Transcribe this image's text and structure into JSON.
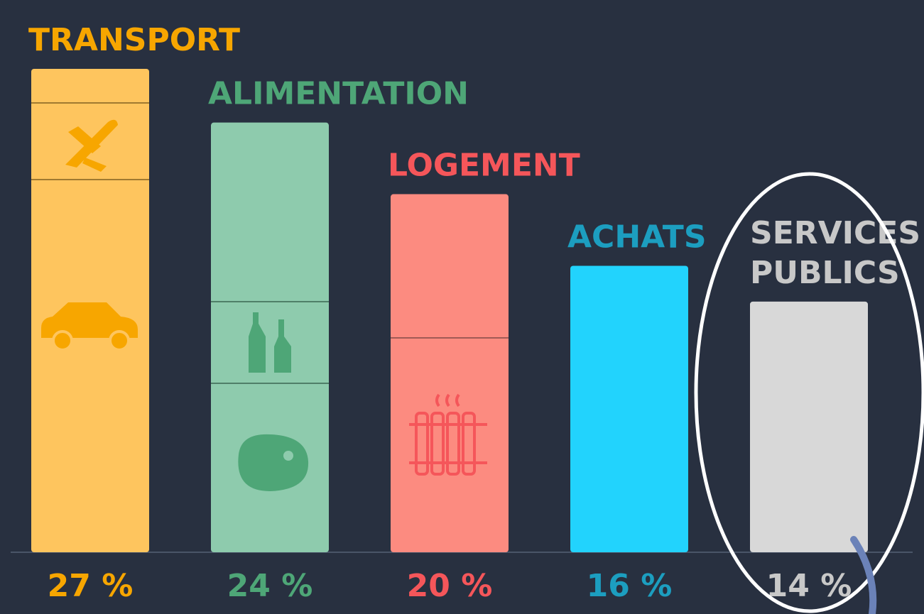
{
  "chart_data": {
    "type": "bar",
    "categories": [
      "TRANSPORT",
      "ALIMENTATION",
      "LOGEMENT",
      "ACHATS",
      "SERVICES PUBLICS"
    ],
    "values": [
      27,
      24,
      20,
      16,
      14
    ],
    "value_labels": [
      "27 %",
      "24 %",
      "20 %",
      "16 %",
      "14 %"
    ],
    "colors": [
      "#fec55e",
      "#8ecbad",
      "#fc8b80",
      "#22d3fd",
      "#d8d8d8"
    ],
    "label_colors": [
      "#f7a600",
      "#4ea677",
      "#f5565a",
      "#1c9ec0",
      "#c8c8c8"
    ],
    "ylim": [
      0,
      27
    ]
  }
}
